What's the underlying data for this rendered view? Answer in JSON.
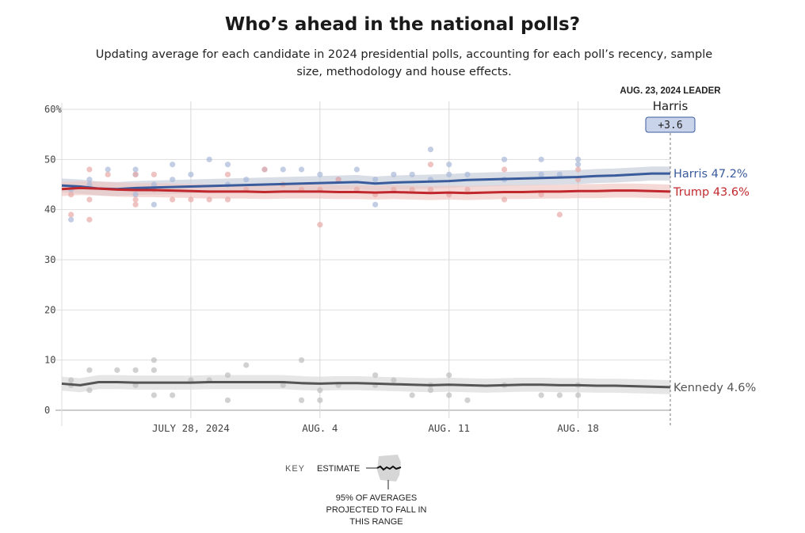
{
  "chart_data": {
    "type": "line",
    "title": "Who’s ahead in the national polls?",
    "subtitle": "Updating average for each candidate in 2024 presidential polls, accounting for each poll’s recency, sample size, methodology and house effects.",
    "x_start": "2024-07-21",
    "x_end": "2024-08-23",
    "ylim": [
      0,
      60
    ],
    "yticks": [
      {
        "value": 0,
        "label": "0"
      },
      {
        "value": 10,
        "label": "10"
      },
      {
        "value": 20,
        "label": "20"
      },
      {
        "value": 30,
        "label": "30"
      },
      {
        "value": 40,
        "label": "40"
      },
      {
        "value": 50,
        "label": "50"
      },
      {
        "value": 60,
        "label": "60%"
      }
    ],
    "xticks": [
      {
        "date": "2024-07-28",
        "label": "JULY 28, 2024"
      },
      {
        "date": "2024-08-04",
        "label": "AUG. 4"
      },
      {
        "date": "2024-08-11",
        "label": "AUG. 11"
      },
      {
        "date": "2024-08-18",
        "label": "AUG. 18"
      }
    ],
    "grid": true,
    "leader": {
      "date_label": "AUG. 23, 2024 LEADER",
      "name": "Harris",
      "margin": "+3.6"
    },
    "series": [
      {
        "name": "Harris",
        "end_label": "Harris 47.2%",
        "color": "#3a5b9c",
        "dot_color": "#a9b9d9",
        "band_color": "#c7cfdc",
        "dates": [
          "2024-07-21",
          "2024-07-22",
          "2024-07-23",
          "2024-07-24",
          "2024-07-25",
          "2024-07-26",
          "2024-07-27",
          "2024-07-28",
          "2024-07-29",
          "2024-07-30",
          "2024-07-31",
          "2024-08-01",
          "2024-08-02",
          "2024-08-03",
          "2024-08-04",
          "2024-08-05",
          "2024-08-06",
          "2024-08-07",
          "2024-08-08",
          "2024-08-09",
          "2024-08-10",
          "2024-08-11",
          "2024-08-12",
          "2024-08-13",
          "2024-08-14",
          "2024-08-15",
          "2024-08-16",
          "2024-08-17",
          "2024-08-18",
          "2024-08-19",
          "2024-08-20",
          "2024-08-21",
          "2024-08-22",
          "2024-08-23"
        ],
        "values": [
          44.8,
          44.6,
          44.2,
          44.1,
          44.3,
          44.4,
          44.5,
          44.6,
          44.7,
          44.8,
          44.9,
          45.0,
          45.1,
          45.2,
          45.3,
          45.4,
          45.5,
          45.2,
          45.4,
          45.5,
          45.6,
          45.7,
          45.9,
          46.0,
          46.1,
          46.2,
          46.3,
          46.4,
          46.5,
          46.7,
          46.8,
          47.0,
          47.2,
          47.2
        ],
        "polls": [
          [
            0.5,
            38
          ],
          [
            0.5,
            44
          ],
          [
            1.5,
            46
          ],
          [
            1.5,
            45
          ],
          [
            2.5,
            48
          ],
          [
            4,
            48
          ],
          [
            4,
            47
          ],
          [
            4,
            43
          ],
          [
            5,
            45
          ],
          [
            5,
            41
          ],
          [
            6,
            49
          ],
          [
            6,
            46
          ],
          [
            7,
            47
          ],
          [
            8,
            50
          ],
          [
            9,
            49
          ],
          [
            9,
            45
          ],
          [
            10,
            46
          ],
          [
            11,
            48
          ],
          [
            12,
            48
          ],
          [
            13,
            48
          ],
          [
            14,
            47
          ],
          [
            15,
            46
          ],
          [
            16,
            48
          ],
          [
            17,
            41
          ],
          [
            17,
            46
          ],
          [
            18,
            47
          ],
          [
            19,
            47
          ],
          [
            20,
            52
          ],
          [
            20,
            46
          ],
          [
            21,
            49
          ],
          [
            21,
            47
          ],
          [
            22,
            47
          ],
          [
            24,
            50
          ],
          [
            24,
            46
          ],
          [
            26,
            50
          ],
          [
            26,
            47
          ],
          [
            27,
            47
          ],
          [
            28,
            50
          ],
          [
            28,
            49
          ]
        ]
      },
      {
        "name": "Trump",
        "end_label": "Trump 43.6%",
        "color": "#c0282d",
        "dot_color": "#e8a9a6",
        "band_color": "#efc9c5",
        "dates": [
          "2024-07-21",
          "2024-07-22",
          "2024-07-23",
          "2024-07-24",
          "2024-07-25",
          "2024-07-26",
          "2024-07-27",
          "2024-07-28",
          "2024-07-29",
          "2024-07-30",
          "2024-07-31",
          "2024-08-01",
          "2024-08-02",
          "2024-08-03",
          "2024-08-04",
          "2024-08-05",
          "2024-08-06",
          "2024-08-07",
          "2024-08-08",
          "2024-08-09",
          "2024-08-10",
          "2024-08-11",
          "2024-08-12",
          "2024-08-13",
          "2024-08-14",
          "2024-08-15",
          "2024-08-16",
          "2024-08-17",
          "2024-08-18",
          "2024-08-19",
          "2024-08-20",
          "2024-08-21",
          "2024-08-22",
          "2024-08-23"
        ],
        "values": [
          44.1,
          44.3,
          44.2,
          44.0,
          43.9,
          43.9,
          43.8,
          43.7,
          43.6,
          43.6,
          43.6,
          43.5,
          43.6,
          43.6,
          43.6,
          43.5,
          43.5,
          43.4,
          43.5,
          43.4,
          43.3,
          43.4,
          43.3,
          43.4,
          43.5,
          43.5,
          43.6,
          43.6,
          43.7,
          43.7,
          43.8,
          43.8,
          43.7,
          43.6
        ],
        "polls": [
          [
            0.5,
            39
          ],
          [
            0.5,
            43
          ],
          [
            1.5,
            48
          ],
          [
            1.5,
            42
          ],
          [
            1.5,
            38
          ],
          [
            2.5,
            47
          ],
          [
            4,
            47
          ],
          [
            4,
            42
          ],
          [
            4,
            41
          ],
          [
            5,
            47
          ],
          [
            5,
            44
          ],
          [
            6,
            42
          ],
          [
            7,
            42
          ],
          [
            8,
            42
          ],
          [
            9,
            42
          ],
          [
            9,
            47
          ],
          [
            10,
            44
          ],
          [
            11,
            48
          ],
          [
            12,
            45
          ],
          [
            13,
            44
          ],
          [
            14,
            44
          ],
          [
            14,
            37
          ],
          [
            15,
            46
          ],
          [
            16,
            44
          ],
          [
            17,
            43
          ],
          [
            18,
            44
          ],
          [
            19,
            44
          ],
          [
            20,
            44
          ],
          [
            20,
            49
          ],
          [
            21,
            43
          ],
          [
            22,
            44
          ],
          [
            24,
            48
          ],
          [
            24,
            42
          ],
          [
            26,
            43
          ],
          [
            27,
            39
          ],
          [
            28,
            46
          ],
          [
            28,
            48
          ]
        ]
      },
      {
        "name": "Kennedy",
        "end_label": "Kennedy 4.6%",
        "color": "#555555",
        "dot_color": "#bdbdbd",
        "band_color": "#dcdcdc",
        "dates": [
          "2024-07-21",
          "2024-07-22",
          "2024-07-23",
          "2024-07-24",
          "2024-07-25",
          "2024-07-26",
          "2024-07-27",
          "2024-07-28",
          "2024-07-29",
          "2024-07-30",
          "2024-07-31",
          "2024-08-01",
          "2024-08-02",
          "2024-08-03",
          "2024-08-04",
          "2024-08-05",
          "2024-08-06",
          "2024-08-07",
          "2024-08-08",
          "2024-08-09",
          "2024-08-10",
          "2024-08-11",
          "2024-08-12",
          "2024-08-13",
          "2024-08-14",
          "2024-08-15",
          "2024-08-16",
          "2024-08-17",
          "2024-08-18",
          "2024-08-19",
          "2024-08-20",
          "2024-08-21",
          "2024-08-22",
          "2024-08-23"
        ],
        "values": [
          5.3,
          5.0,
          5.6,
          5.6,
          5.5,
          5.5,
          5.5,
          5.5,
          5.6,
          5.6,
          5.6,
          5.6,
          5.6,
          5.4,
          5.3,
          5.4,
          5.4,
          5.3,
          5.2,
          5.1,
          5.0,
          5.1,
          5.0,
          4.9,
          5.0,
          5.1,
          5.1,
          5.0,
          5.0,
          4.9,
          4.9,
          4.8,
          4.7,
          4.6
        ],
        "polls": [
          [
            0.5,
            6
          ],
          [
            0.5,
            5
          ],
          [
            1.5,
            8
          ],
          [
            1.5,
            4
          ],
          [
            3,
            8
          ],
          [
            4,
            8
          ],
          [
            4,
            5
          ],
          [
            5,
            10
          ],
          [
            5,
            8
          ],
          [
            5,
            3
          ],
          [
            6,
            3
          ],
          [
            7,
            6
          ],
          [
            8,
            6
          ],
          [
            9,
            2
          ],
          [
            9,
            7
          ],
          [
            10,
            9
          ],
          [
            12,
            5
          ],
          [
            13,
            10
          ],
          [
            13,
            2
          ],
          [
            14,
            4
          ],
          [
            14,
            2
          ],
          [
            15,
            5
          ],
          [
            17,
            7
          ],
          [
            17,
            5
          ],
          [
            18,
            6
          ],
          [
            19,
            3
          ],
          [
            20,
            5
          ],
          [
            20,
            4
          ],
          [
            21,
            7
          ],
          [
            21,
            3
          ],
          [
            22,
            2
          ],
          [
            24,
            5
          ],
          [
            26,
            3
          ],
          [
            27,
            3
          ],
          [
            28,
            3
          ],
          [
            28,
            5
          ]
        ]
      }
    ]
  },
  "key": {
    "label": "KEY",
    "estimate_label": "ESTIMATE",
    "note": "95% OF AVERAGES PROJECTED TO FALL IN THIS RANGE"
  }
}
